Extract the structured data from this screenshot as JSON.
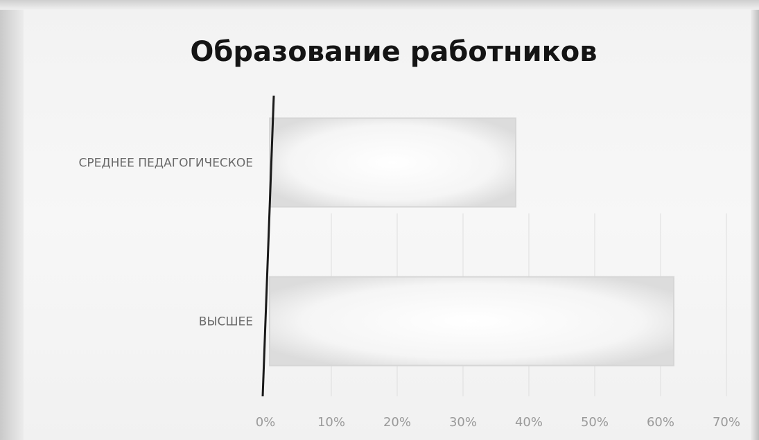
{
  "chart_data": {
    "type": "bar",
    "orientation": "horizontal",
    "title": "Образование работников",
    "xlabel": "",
    "ylabel": "",
    "categories": [
      "СРЕДНЕЕ ПЕДАГОГИЧЕСКОЕ",
      "ВЫСШЕЕ"
    ],
    "values": [
      38,
      62
    ],
    "value_unit": "%",
    "xlim": [
      0,
      70
    ],
    "ticks": [
      "0%",
      "10%",
      "20%",
      "30%",
      "40%",
      "50%",
      "60%",
      "70%"
    ],
    "grid": true,
    "legend": "none",
    "colors": {
      "bar": "#ececec",
      "bar_edge": "#d6d6d6",
      "axis": "#1a1a1a",
      "grid": "#dedede"
    }
  }
}
